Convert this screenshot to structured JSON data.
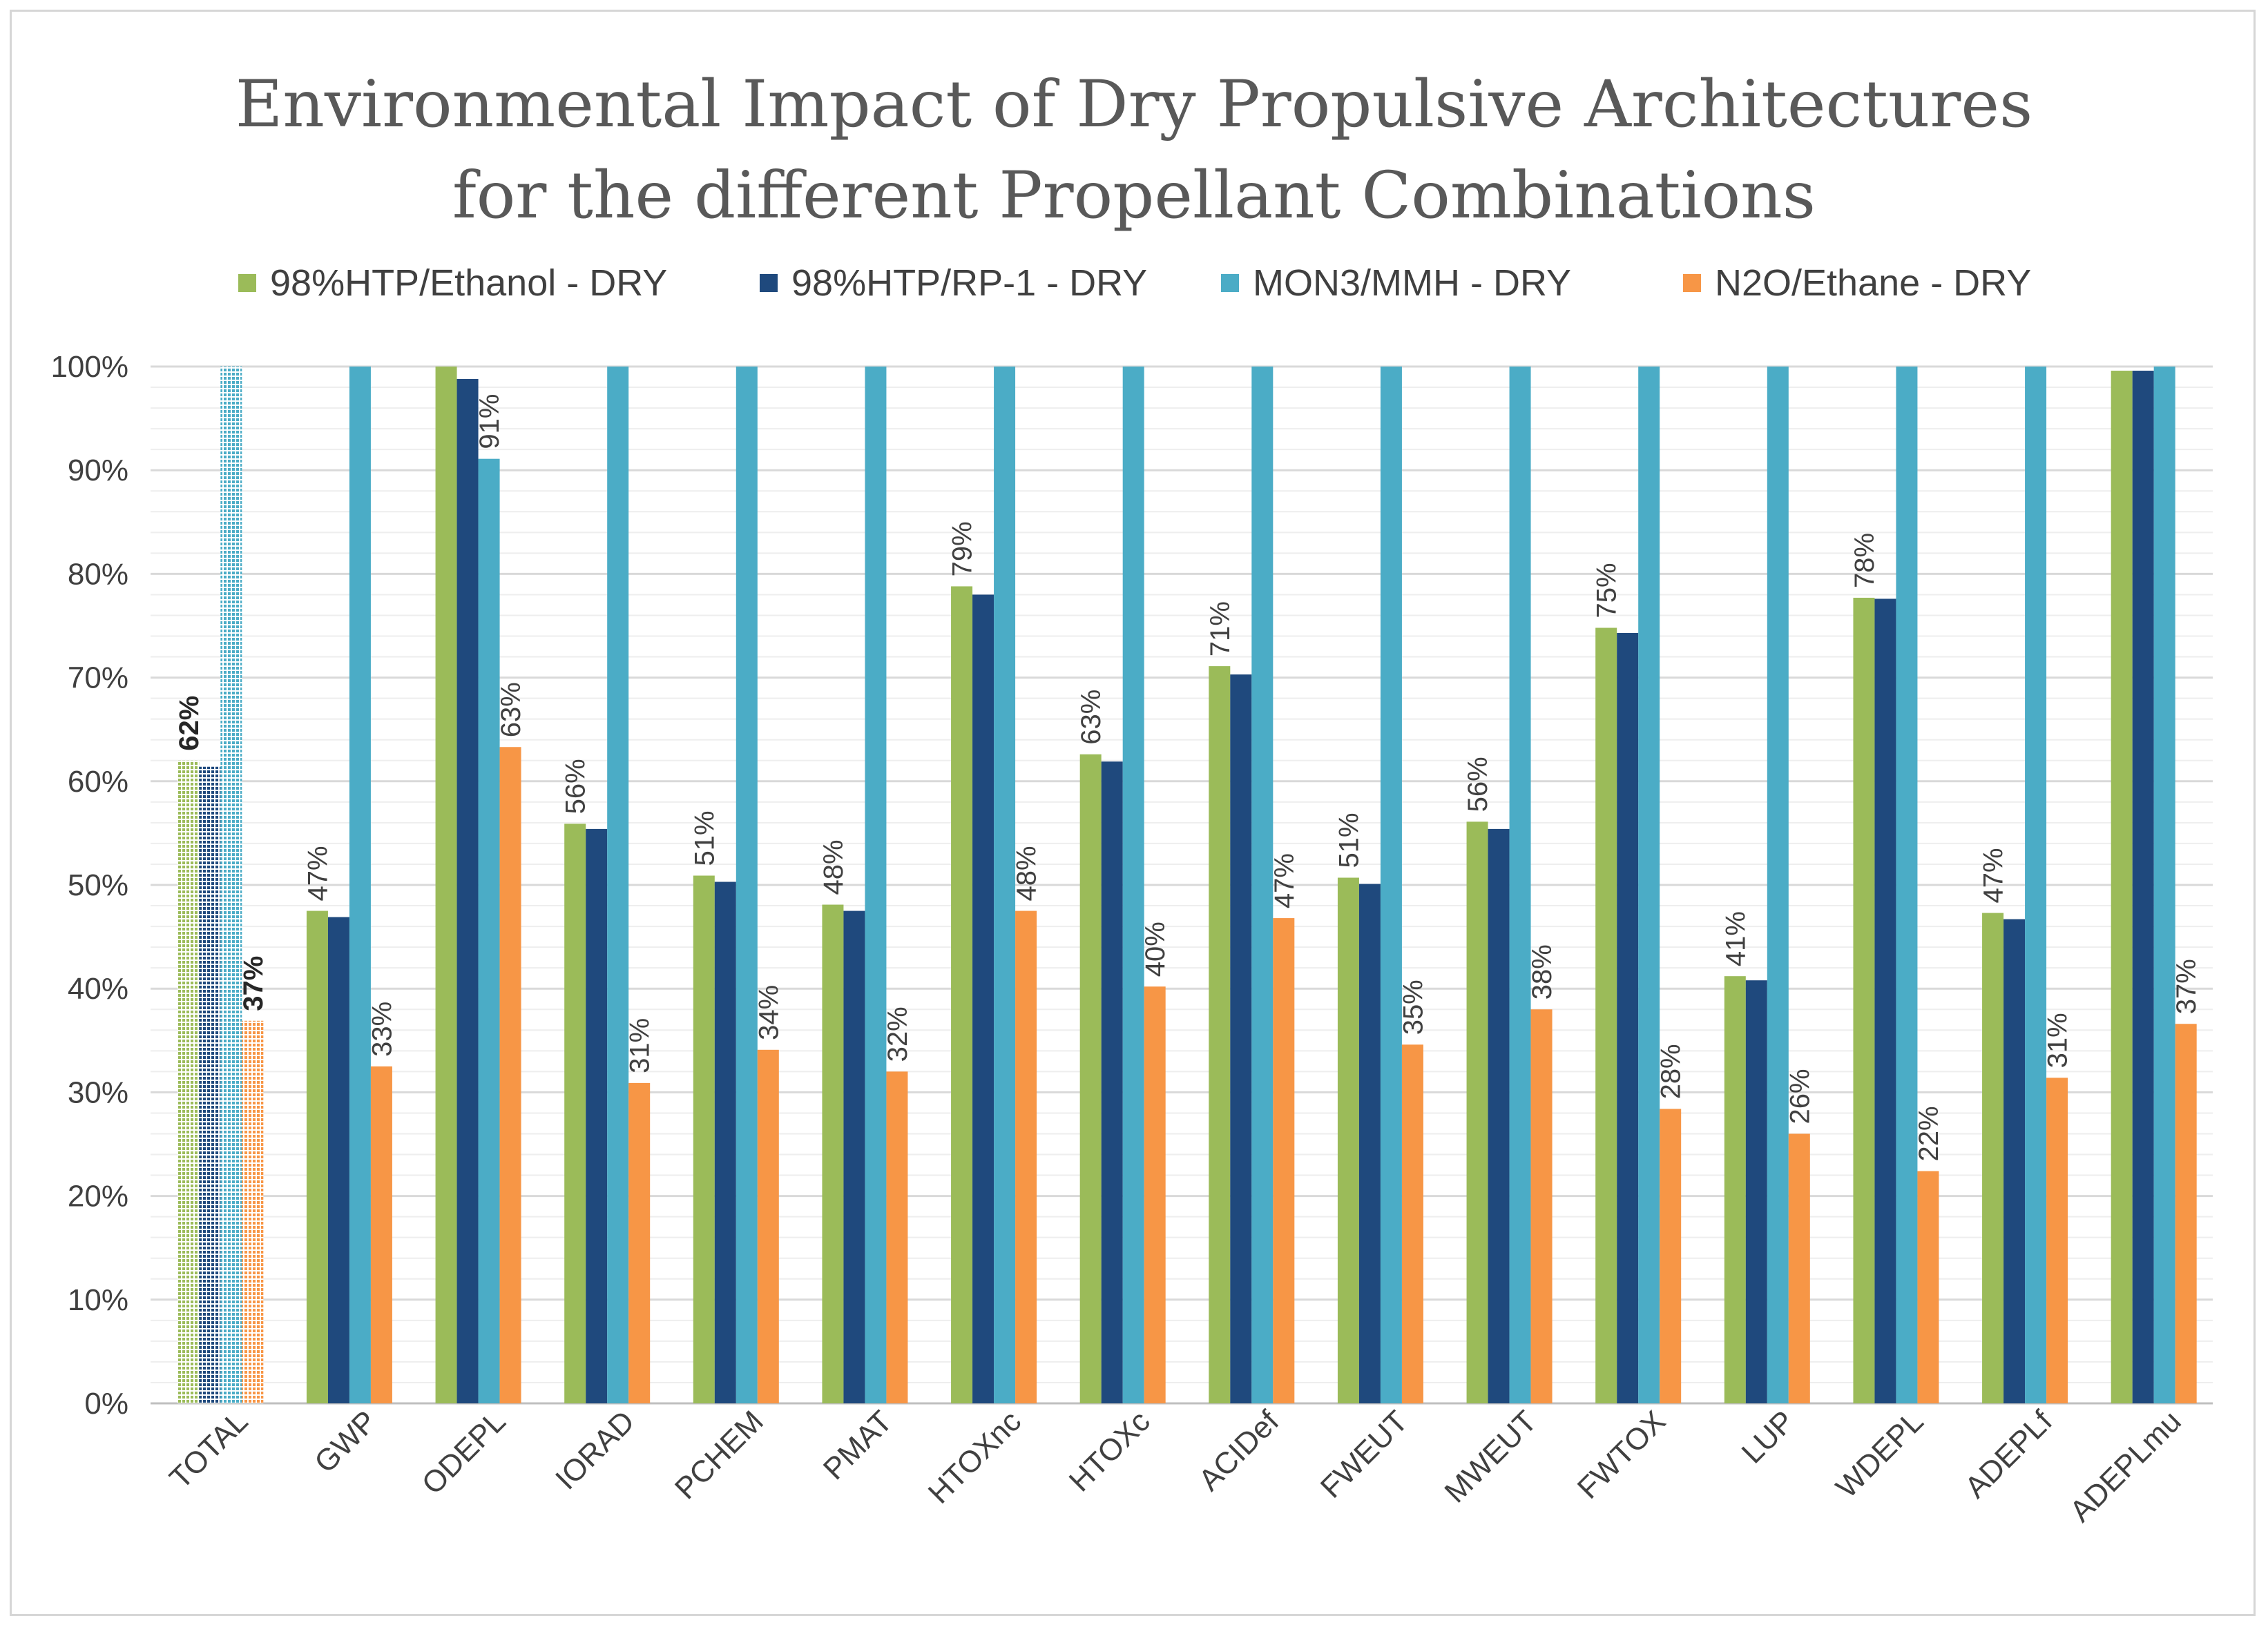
{
  "chart_data": {
    "type": "bar",
    "title": "Environmental Impact of Dry Propulsive Architectures for the different Propellant Combinations",
    "title_lines": [
      "Environmental Impact of Dry Propulsive Architectures",
      "for the different Propellant Combinations"
    ],
    "xlabel": "",
    "ylabel": "",
    "ylim": [
      0,
      1
    ],
    "y_ticks": [
      "0%",
      "10%",
      "20%",
      "30%",
      "40%",
      "50%",
      "60%",
      "70%",
      "80%",
      "90%",
      "100%"
    ],
    "grid": true,
    "legend_position": "top",
    "categories": [
      "TOTAL",
      "GWP",
      "ODEPL",
      "IORAD",
      "PCHEM",
      "PMAT",
      "HTOXnc",
      "HTOXc",
      "ACIDef",
      "FWEUT",
      "MWEUT",
      "FWTOX",
      "LUP",
      "WDEPL",
      "ADEPLf",
      "ADEPLmu"
    ],
    "series": [
      {
        "name": "98%HTP/Ethanol - DRY",
        "color": "#9bbb59",
        "values": [
          0.62,
          0.475,
          1.0,
          0.559,
          0.509,
          0.481,
          0.788,
          0.626,
          0.711,
          0.507,
          0.561,
          0.748,
          0.412,
          0.777,
          0.473,
          0.996
        ],
        "labels": [
          "62%",
          "47%",
          "",
          "56%",
          "51%",
          "48%",
          "79%",
          "63%",
          "71%",
          "51%",
          "56%",
          "75%",
          "41%",
          "78%",
          "47%",
          ""
        ]
      },
      {
        "name": "98%HTP/RP-1 - DRY",
        "color": "#1f497d",
        "values": [
          0.614,
          0.469,
          0.988,
          0.554,
          0.503,
          0.475,
          0.78,
          0.619,
          0.703,
          0.501,
          0.554,
          0.743,
          0.408,
          0.776,
          0.467,
          0.996
        ],
        "labels": [
          "",
          "",
          "",
          "",
          "",
          "",
          "",
          "",
          "",
          "",
          "",
          "",
          "",
          "",
          "",
          ""
        ]
      },
      {
        "name": "MON3/MMH - DRY",
        "color": "#4bacc6",
        "values": [
          1.0,
          1.0,
          0.911,
          1.0,
          1.0,
          1.0,
          1.0,
          1.0,
          1.0,
          1.0,
          1.0,
          1.0,
          1.0,
          1.0,
          1.0,
          1.0
        ],
        "labels": [
          "",
          "",
          "91%",
          "",
          "",
          "",
          "",
          "",
          "",
          "",
          "",
          "",
          "",
          "",
          "",
          ""
        ]
      },
      {
        "name": "N2O/Ethane - DRY",
        "color": "#f79646",
        "values": [
          0.369,
          0.325,
          0.633,
          0.309,
          0.341,
          0.32,
          0.475,
          0.402,
          0.468,
          0.346,
          0.38,
          0.284,
          0.26,
          0.224,
          0.314,
          0.366
        ],
        "labels": [
          "37%",
          "33%",
          "63%",
          "31%",
          "34%",
          "32%",
          "48%",
          "40%",
          "47%",
          "35%",
          "38%",
          "28%",
          "26%",
          "22%",
          "31%",
          "37%"
        ]
      }
    ],
    "hatched_categories": [
      "TOTAL"
    ],
    "bold_label_categories": [
      "TOTAL"
    ]
  }
}
